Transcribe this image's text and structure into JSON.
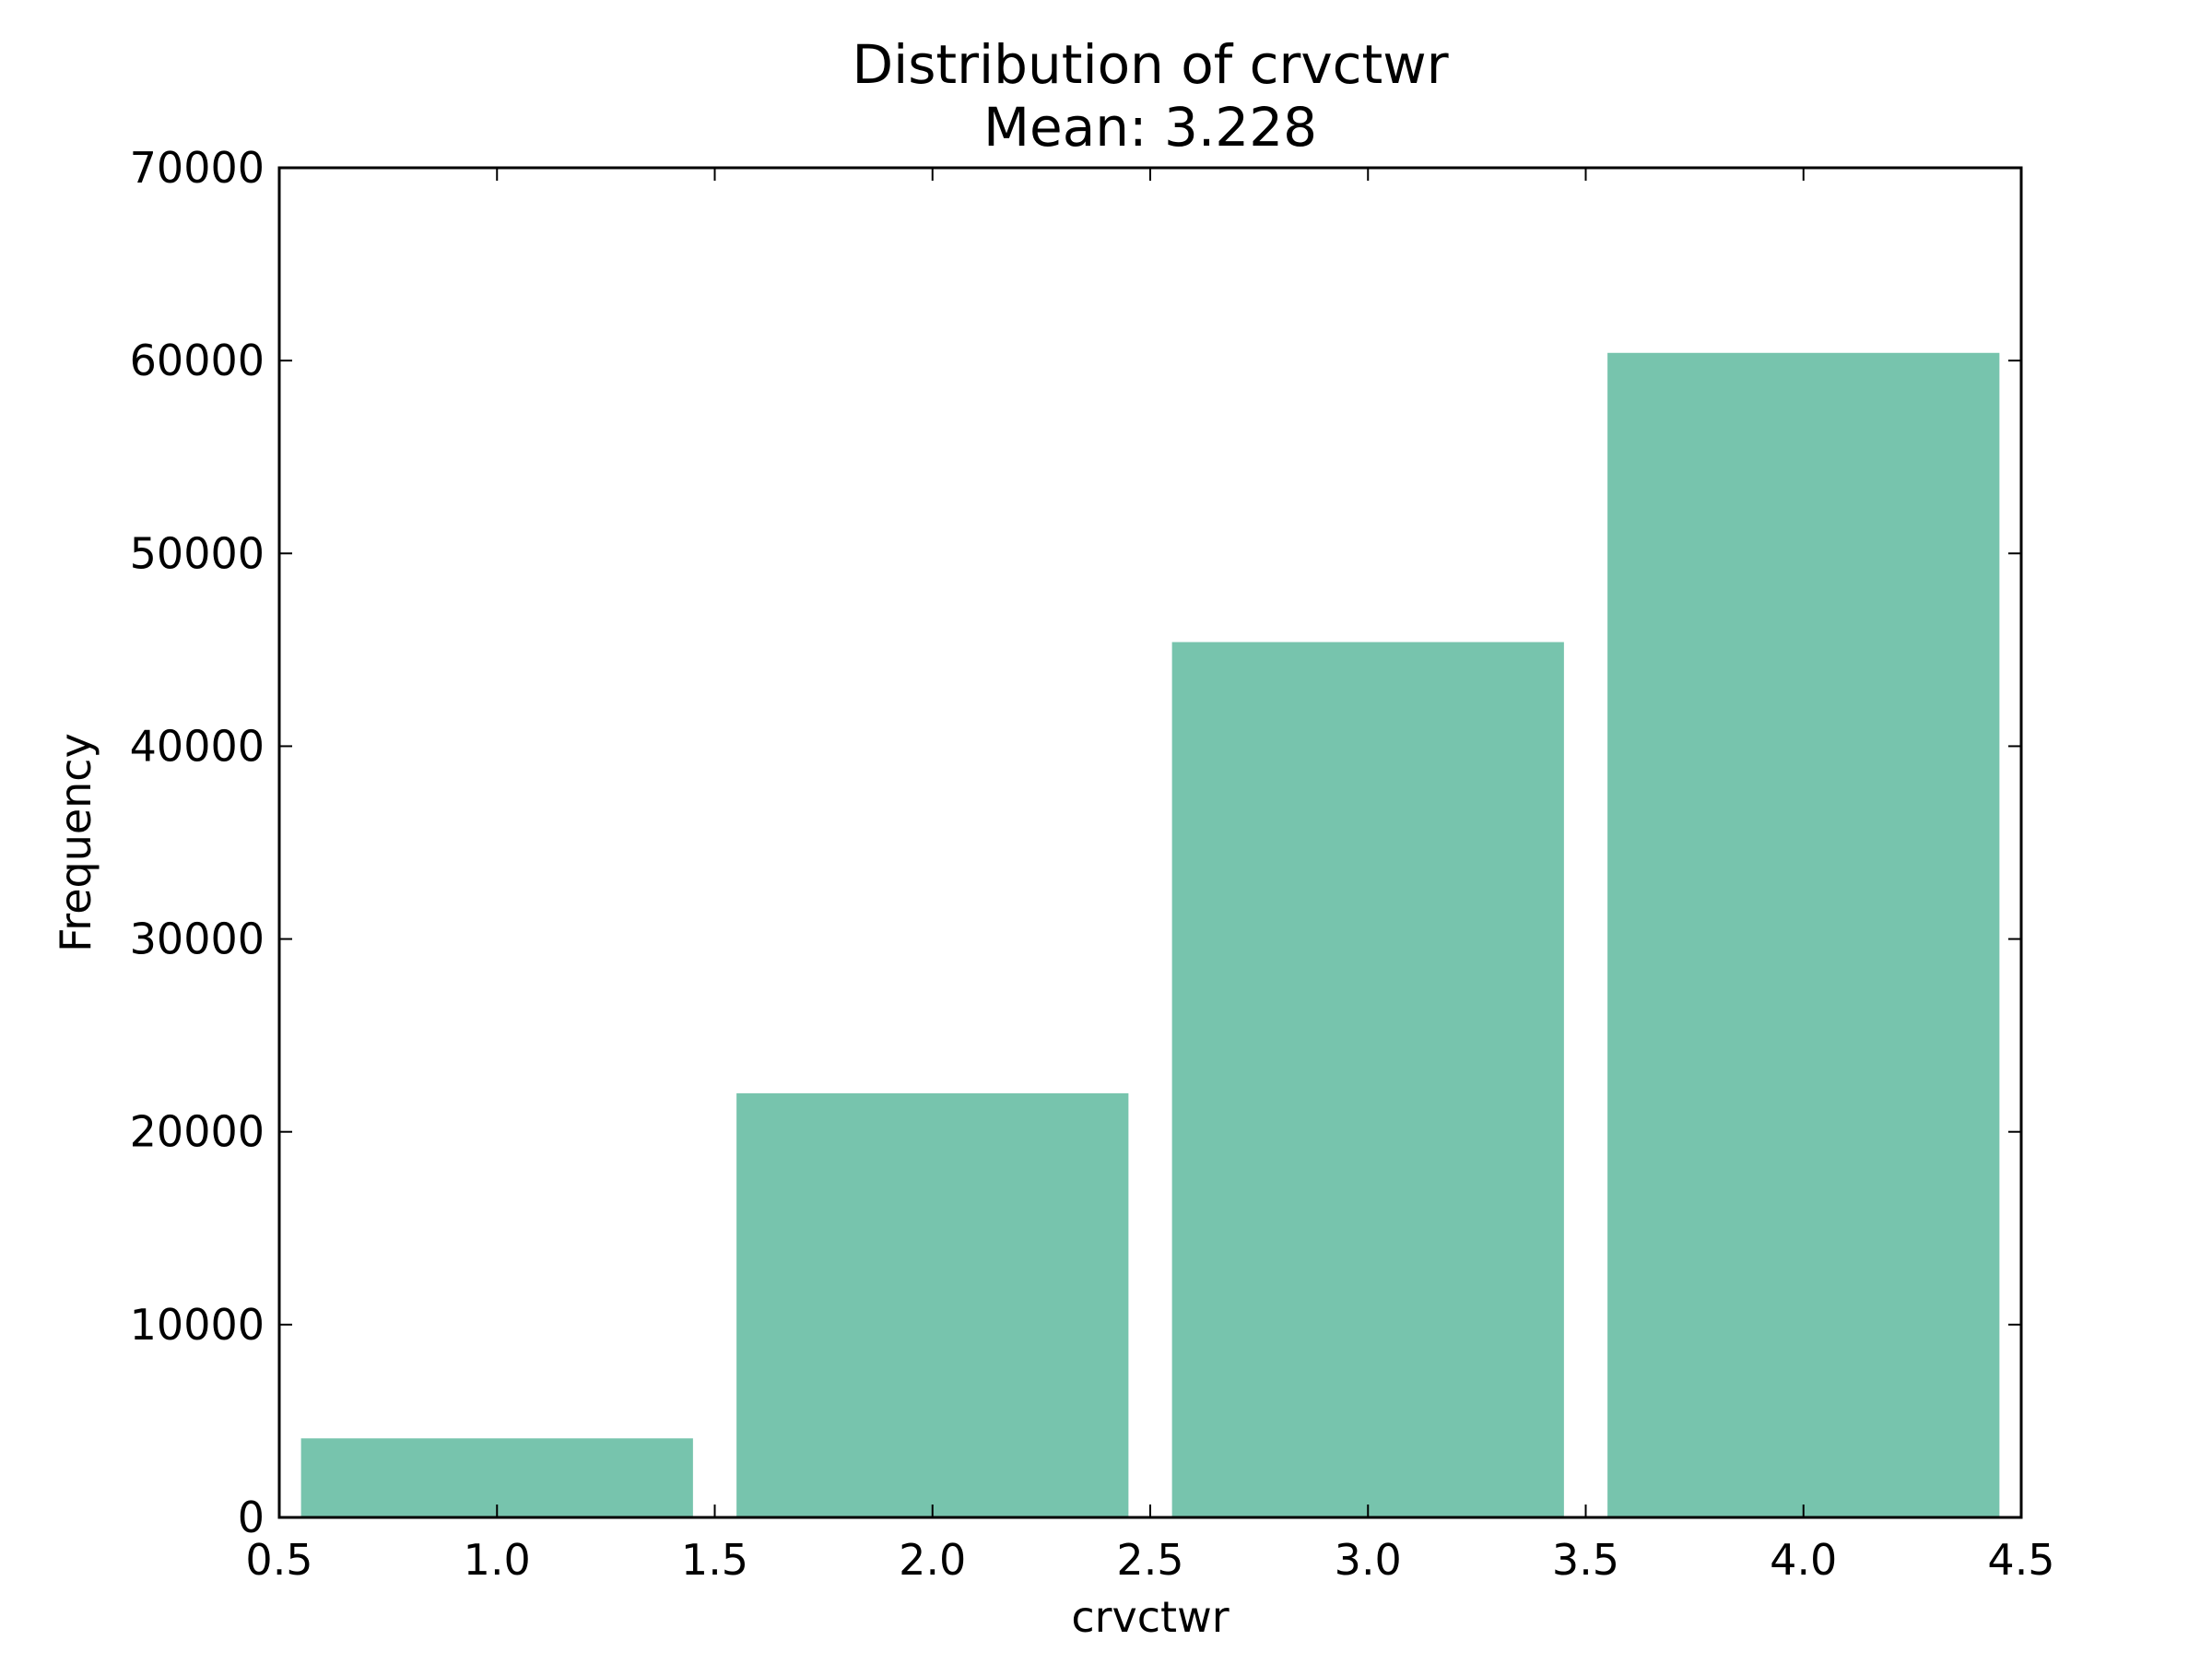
{
  "chart_data": {
    "type": "bar",
    "title": "Distribution of crvctwr",
    "subtitle": "Mean: 3.228",
    "xlabel": "crvctwr",
    "ylabel": "Frequency",
    "categories": [
      "1",
      "2",
      "3",
      "4"
    ],
    "bin_edges": [
      [
        0.55,
        1.45
      ],
      [
        1.55,
        2.45
      ],
      [
        2.55,
        3.45
      ],
      [
        3.55,
        4.45
      ]
    ],
    "values": [
      4100,
      22000,
      45400,
      60400
    ],
    "xlim": [
      0.5,
      4.5
    ],
    "ylim": [
      0,
      70000
    ],
    "xticks": [
      0.5,
      1.0,
      1.5,
      2.0,
      2.5,
      3.0,
      3.5,
      4.0,
      4.5
    ],
    "xtick_labels": [
      "0.5",
      "1.0",
      "1.5",
      "2.0",
      "2.5",
      "3.0",
      "3.5",
      "4.0",
      "4.5"
    ],
    "yticks": [
      0,
      10000,
      20000,
      30000,
      40000,
      50000,
      60000,
      70000
    ],
    "ytick_labels": [
      "0",
      "10000",
      "20000",
      "30000",
      "40000",
      "50000",
      "60000",
      "70000"
    ],
    "grid": false,
    "bar_color": "#77c4ad"
  }
}
